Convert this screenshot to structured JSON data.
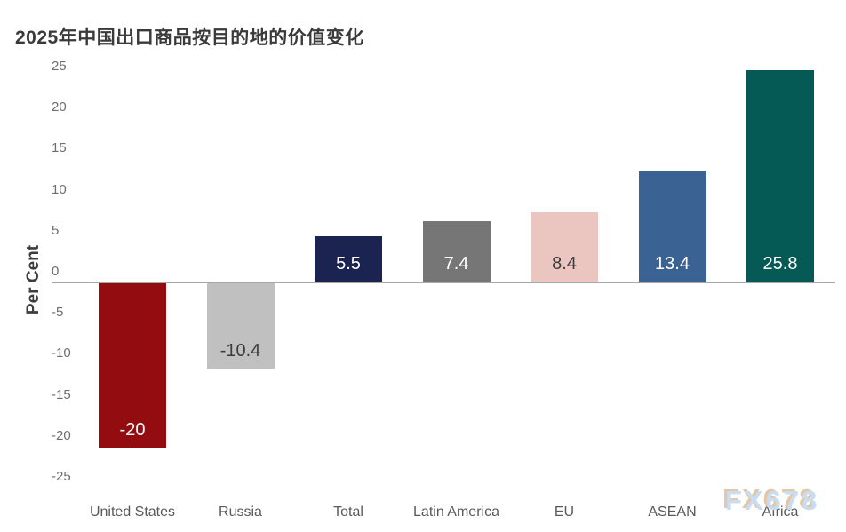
{
  "page": {
    "title": "2025年中国出口商品按目的地的价值变化",
    "watermark": "FX678"
  },
  "chart_data": {
    "type": "bar",
    "title": "2025年中国出口商品按目的地的价值变化",
    "xlabel": "",
    "ylabel": "Per Cent",
    "categories": [
      "United States",
      "Russia",
      "Total",
      "Latin America",
      "EU",
      "ASEAN",
      "Africa"
    ],
    "values": [
      -20,
      -10.4,
      5.5,
      7.4,
      8.4,
      13.4,
      25.8
    ],
    "value_labels": [
      "-20",
      "-10.4",
      "5.5",
      "7.4",
      "8.4",
      "13.4",
      "25.8"
    ],
    "bar_colors": [
      "#930d10",
      "#c0c0c0",
      "#1b2350",
      "#767676",
      "#ebc5c0",
      "#3a6394",
      "#055a56"
    ],
    "value_label_colors": [
      "#ffffff",
      "#3c3c3c",
      "#ffffff",
      "#ffffff",
      "#3c3c3c",
      "#ffffff",
      "#ffffff"
    ],
    "ylim": [
      -25,
      25
    ],
    "yticks": [
      25,
      20,
      15,
      10,
      5,
      0,
      -5,
      -10,
      -15,
      -20,
      -25
    ],
    "grid": false,
    "legend": false,
    "zero_line_color": "#a8a8a8",
    "axis_text_color": "#6e6e6e",
    "category_text_color": "#595959",
    "watermark": "FX678",
    "watermark_color": "#c8dcf2",
    "watermark_shadow_color": "#e2c7a9"
  }
}
